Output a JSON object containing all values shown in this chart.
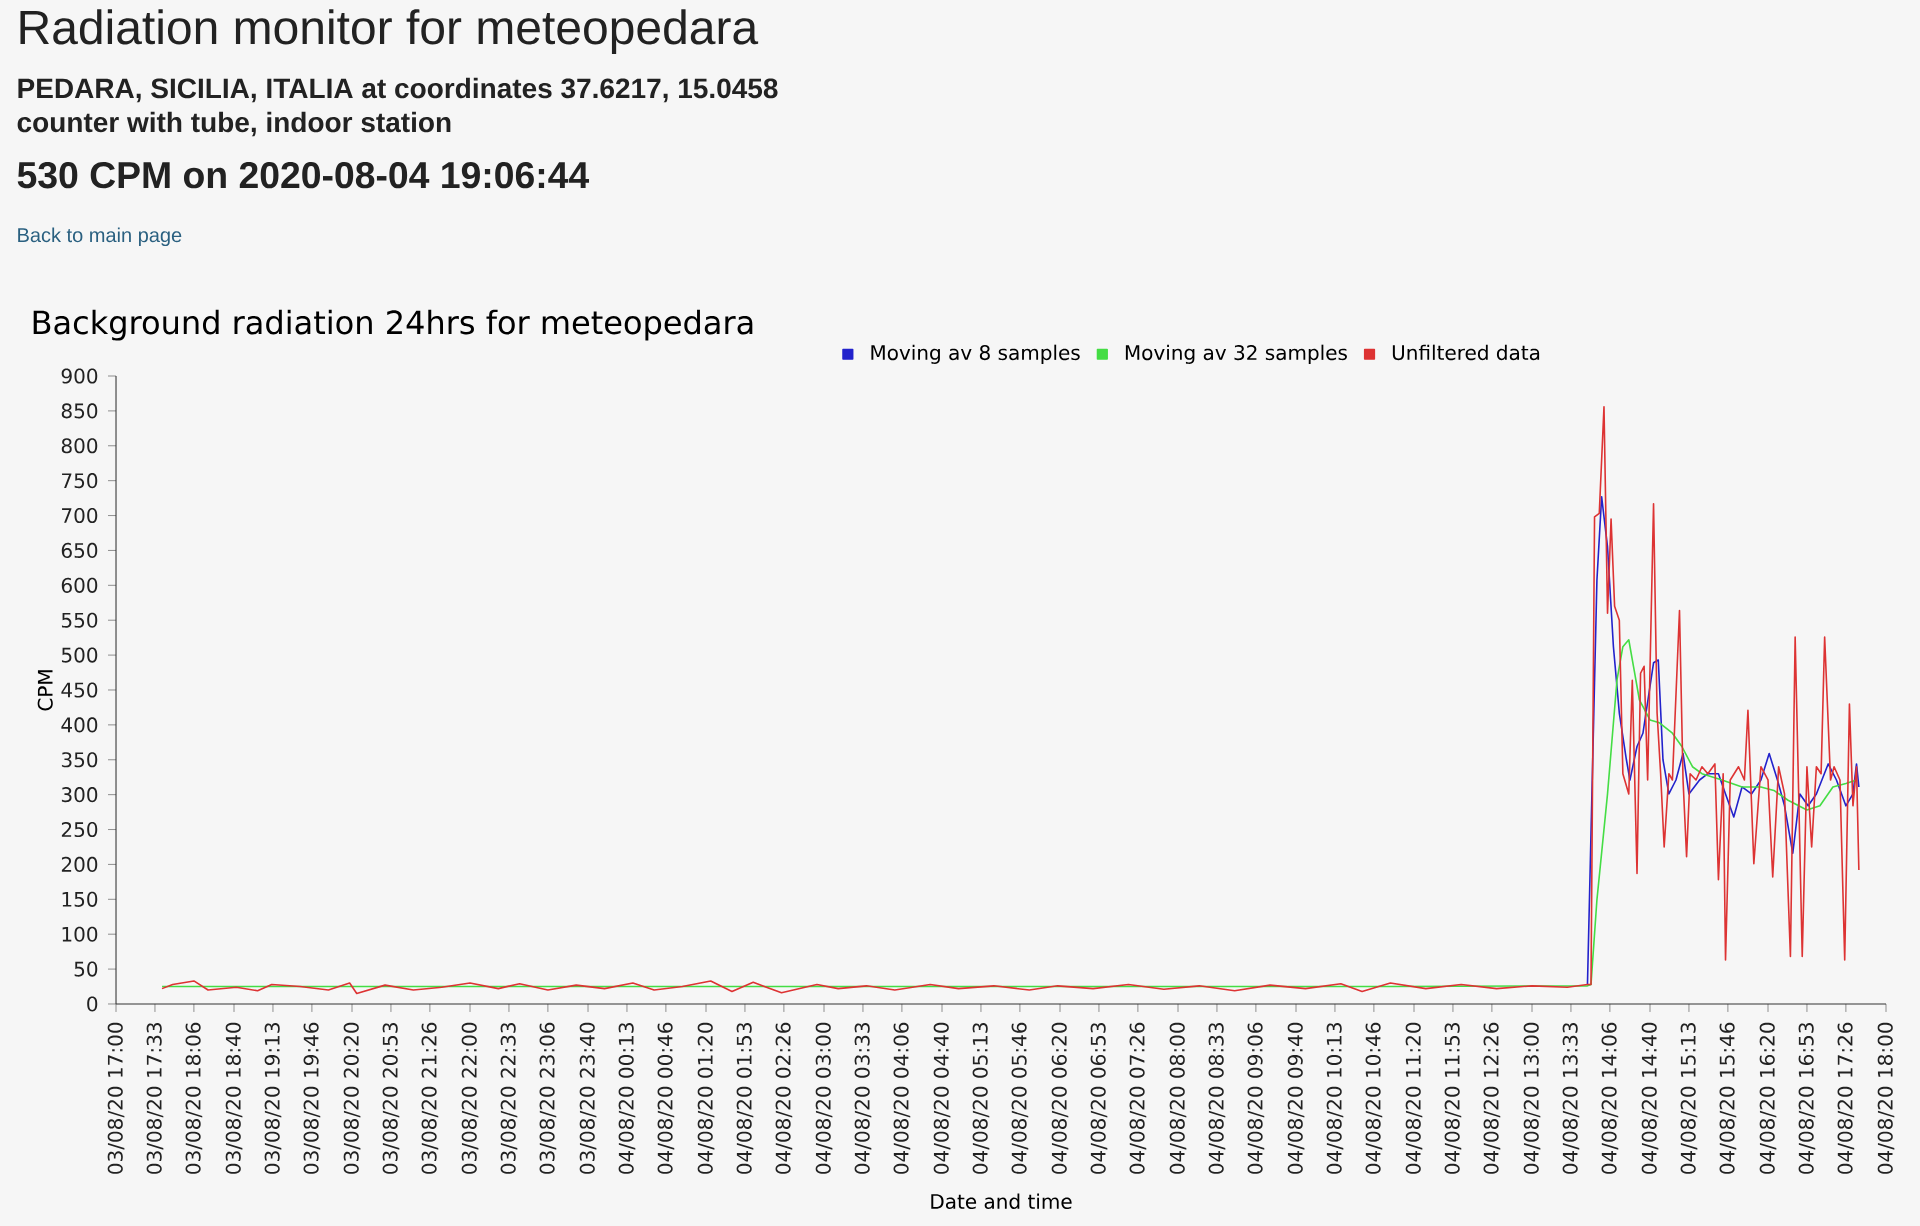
{
  "chart_data": {
    "type": "line",
    "title": "Background radiation 24hrs for meteopedara",
    "annotations": [
      "Radiation monitor for meteopedara",
      "PEDARA, SICILIA, ITALIA at coordinates 37.6217, 15.0458",
      "counter with tube, indoor station",
      "530 CPM on 2020-08-04 19:06:44",
      "Back to main page"
    ],
    "xlabel": "Date and time",
    "ylabel": "CPM",
    "xlim": [
      "2020-08-03T17:00",
      "2020-08-04T18:00"
    ],
    "ylim": [
      0,
      900
    ],
    "xticks": [
      {
        "value": "2020-08-03T17:00",
        "label": "03/08/20 17:00"
      },
      {
        "value": "2020-08-03T17:33",
        "label": "03/08/20 17:33"
      },
      {
        "value": "2020-08-03T18:06",
        "label": "03/08/20 18:06"
      },
      {
        "value": "2020-08-03T18:40",
        "label": "03/08/20 18:40"
      },
      {
        "value": "2020-08-03T19:13",
        "label": "03/08/20 19:13"
      },
      {
        "value": "2020-08-03T19:46",
        "label": "03/08/20 19:46"
      },
      {
        "value": "2020-08-03T20:20",
        "label": "03/08/20 20:20"
      },
      {
        "value": "2020-08-03T20:53",
        "label": "03/08/20 20:53"
      },
      {
        "value": "2020-08-03T21:26",
        "label": "03/08/20 21:26"
      },
      {
        "value": "2020-08-03T22:00",
        "label": "03/08/20 22:00"
      },
      {
        "value": "2020-08-03T22:33",
        "label": "03/08/20 22:33"
      },
      {
        "value": "2020-08-03T23:06",
        "label": "03/08/20 23:06"
      },
      {
        "value": "2020-08-03T23:40",
        "label": "03/08/20 23:40"
      },
      {
        "value": "2020-08-04T00:13",
        "label": "04/08/20 00:13"
      },
      {
        "value": "2020-08-04T00:46",
        "label": "04/08/20 00:46"
      },
      {
        "value": "2020-08-04T01:20",
        "label": "04/08/20 01:20"
      },
      {
        "value": "2020-08-04T01:53",
        "label": "04/08/20 01:53"
      },
      {
        "value": "2020-08-04T02:26",
        "label": "04/08/20 02:26"
      },
      {
        "value": "2020-08-04T03:00",
        "label": "04/08/20 03:00"
      },
      {
        "value": "2020-08-04T03:33",
        "label": "04/08/20 03:33"
      },
      {
        "value": "2020-08-04T04:06",
        "label": "04/08/20 04:06"
      },
      {
        "value": "2020-08-04T04:40",
        "label": "04/08/20 04:40"
      },
      {
        "value": "2020-08-04T05:13",
        "label": "04/08/20 05:13"
      },
      {
        "value": "2020-08-04T05:46",
        "label": "04/08/20 05:46"
      },
      {
        "value": "2020-08-04T06:20",
        "label": "04/08/20 06:20"
      },
      {
        "value": "2020-08-04T06:53",
        "label": "04/08/20 06:53"
      },
      {
        "value": "2020-08-04T07:26",
        "label": "04/08/20 07:26"
      },
      {
        "value": "2020-08-04T08:00",
        "label": "04/08/20 08:00"
      },
      {
        "value": "2020-08-04T08:33",
        "label": "04/08/20 08:33"
      },
      {
        "value": "2020-08-04T09:06",
        "label": "04/08/20 09:06"
      },
      {
        "value": "2020-08-04T09:40",
        "label": "04/08/20 09:40"
      },
      {
        "value": "2020-08-04T10:13",
        "label": "04/08/20 10:13"
      },
      {
        "value": "2020-08-04T10:46",
        "label": "04/08/20 10:46"
      },
      {
        "value": "2020-08-04T11:20",
        "label": "04/08/20 11:20"
      },
      {
        "value": "2020-08-04T11:53",
        "label": "04/08/20 11:53"
      },
      {
        "value": "2020-08-04T12:26",
        "label": "04/08/20 12:26"
      },
      {
        "value": "2020-08-04T13:00",
        "label": "04/08/20 13:00"
      },
      {
        "value": "2020-08-04T13:33",
        "label": "04/08/20 13:33"
      },
      {
        "value": "2020-08-04T14:06",
        "label": "04/08/20 14:06"
      },
      {
        "value": "2020-08-04T14:40",
        "label": "04/08/20 14:40"
      },
      {
        "value": "2020-08-04T15:13",
        "label": "04/08/20 15:13"
      },
      {
        "value": "2020-08-04T15:46",
        "label": "04/08/20 15:46"
      },
      {
        "value": "2020-08-04T16:20",
        "label": "04/08/20 16:20"
      },
      {
        "value": "2020-08-04T16:53",
        "label": "04/08/20 16:53"
      },
      {
        "value": "2020-08-04T17:26",
        "label": "04/08/20 17:26"
      },
      {
        "value": "2020-08-04T18:00",
        "label": "04/08/20 18:00"
      }
    ],
    "yticks": [
      0,
      50,
      100,
      150,
      200,
      250,
      300,
      350,
      400,
      450,
      500,
      550,
      600,
      650,
      700,
      750,
      800,
      850,
      900
    ],
    "legend": "top",
    "series": [
      {
        "name": "Moving av 8 samples",
        "color": "#2222cc",
        "x": [
          "2020-08-04T13:47",
          "2020-08-04T13:55",
          "2020-08-04T13:59",
          "2020-08-04T14:04",
          "2020-08-04T14:09",
          "2020-08-04T14:14",
          "2020-08-04T14:20",
          "2020-08-04T14:23",
          "2020-08-04T14:29",
          "2020-08-04T14:34",
          "2020-08-04T14:43",
          "2020-08-04T14:47",
          "2020-08-04T14:51",
          "2020-08-04T14:56",
          "2020-08-04T15:02",
          "2020-08-04T15:08",
          "2020-08-04T15:13",
          "2020-08-04T15:22",
          "2020-08-04T15:29",
          "2020-08-04T15:38",
          "2020-08-04T15:44",
          "2020-08-04T15:51",
          "2020-08-04T15:58",
          "2020-08-04T16:06",
          "2020-08-04T16:14",
          "2020-08-04T16:21",
          "2020-08-04T16:28",
          "2020-08-04T16:34",
          "2020-08-04T16:41",
          "2020-08-04T16:47",
          "2020-08-04T16:54",
          "2020-08-04T17:01",
          "2020-08-04T17:11",
          "2020-08-04T17:18",
          "2020-08-04T17:26",
          "2020-08-04T17:32",
          "2020-08-04T17:35",
          "2020-08-04T17:37"
        ],
        "values": [
          28,
          607,
          727,
          655,
          512,
          417,
          350,
          321,
          369,
          388,
          489,
          493,
          350,
          301,
          321,
          359,
          301,
          321,
          330,
          330,
          301,
          268,
          311,
          301,
          321,
          359,
          321,
          284,
          216,
          301,
          284,
          301,
          344,
          321,
          284,
          301,
          344,
          311
        ]
      },
      {
        "name": "Moving av 32 samples",
        "color": "#44dd44",
        "x": [
          "2020-08-03T17:39",
          "2020-08-03T19:00",
          "2020-08-03T21:00",
          "2020-08-03T23:00",
          "2020-08-04T01:00",
          "2020-08-04T03:00",
          "2020-08-04T05:00",
          "2020-08-04T07:00",
          "2020-08-04T09:00",
          "2020-08-04T11:00",
          "2020-08-04T13:47",
          "2020-08-04T13:50",
          "2020-08-04T13:55",
          "2020-08-04T14:04",
          "2020-08-04T14:12",
          "2020-08-04T14:17",
          "2020-08-04T14:22",
          "2020-08-04T14:26",
          "2020-08-04T14:31",
          "2020-08-04T14:40",
          "2020-08-04T14:48",
          "2020-08-04T14:59",
          "2020-08-04T15:07",
          "2020-08-04T15:16",
          "2020-08-04T15:24",
          "2020-08-04T15:41",
          "2020-08-04T15:58",
          "2020-08-04T16:14",
          "2020-08-04T16:25",
          "2020-08-04T16:37",
          "2020-08-04T16:53",
          "2020-08-04T17:04",
          "2020-08-04T17:15",
          "2020-08-04T17:26",
          "2020-08-04T17:35"
        ],
        "values": [
          25,
          25,
          25,
          25,
          25,
          25,
          25,
          25,
          25,
          25,
          26,
          28,
          149,
          301,
          464,
          512,
          522,
          484,
          436,
          407,
          403,
          388,
          369,
          340,
          330,
          321,
          311,
          311,
          306,
          292,
          278,
          284,
          311,
          316,
          321
        ]
      },
      {
        "name": "Unfiltered data",
        "color": "#dd3333",
        "x": [
          "2020-08-03T17:39",
          "2020-08-03T17:48",
          "2020-08-03T18:06",
          "2020-08-03T18:18",
          "2020-08-03T18:42",
          "2020-08-03T19:00",
          "2020-08-03T19:12",
          "2020-08-03T19:36",
          "2020-08-03T20:00",
          "2020-08-03T20:18",
          "2020-08-03T20:24",
          "2020-08-03T20:48",
          "2020-08-03T21:12",
          "2020-08-03T21:36",
          "2020-08-03T22:00",
          "2020-08-03T22:24",
          "2020-08-03T22:42",
          "2020-08-03T23:06",
          "2020-08-03T23:30",
          "2020-08-03T23:54",
          "2020-08-04T00:18",
          "2020-08-04T00:36",
          "2020-08-04T01:00",
          "2020-08-04T01:24",
          "2020-08-04T01:42",
          "2020-08-04T02:00",
          "2020-08-04T02:24",
          "2020-08-04T02:54",
          "2020-08-04T03:12",
          "2020-08-04T03:36",
          "2020-08-04T04:00",
          "2020-08-04T04:30",
          "2020-08-04T04:54",
          "2020-08-04T05:24",
          "2020-08-04T05:54",
          "2020-08-04T06:18",
          "2020-08-04T06:48",
          "2020-08-04T07:18",
          "2020-08-04T07:48",
          "2020-08-04T08:18",
          "2020-08-04T08:48",
          "2020-08-04T09:18",
          "2020-08-04T09:48",
          "2020-08-04T10:18",
          "2020-08-04T10:36",
          "2020-08-04T11:00",
          "2020-08-04T11:30",
          "2020-08-04T12:00",
          "2020-08-04T12:30",
          "2020-08-04T13:00",
          "2020-08-04T13:30",
          "2020-08-04T13:47",
          "2020-08-04T13:50",
          "2020-08-04T13:53",
          "2020-08-04T13:57",
          "2020-08-04T14:01",
          "2020-08-04T14:04",
          "2020-08-04T14:07",
          "2020-08-04T14:10",
          "2020-08-04T14:14",
          "2020-08-04T14:17",
          "2020-08-04T14:22",
          "2020-08-04T14:25",
          "2020-08-04T14:29",
          "2020-08-04T14:32",
          "2020-08-04T14:35",
          "2020-08-04T14:38",
          "2020-08-04T14:43",
          "2020-08-04T14:46",
          "2020-08-04T14:49",
          "2020-08-04T14:52",
          "2020-08-04T14:56",
          "2020-08-04T14:59",
          "2020-08-04T15:05",
          "2020-08-04T15:08",
          "2020-08-04T15:11",
          "2020-08-04T15:14",
          "2020-08-04T15:19",
          "2020-08-04T15:24",
          "2020-08-04T15:29",
          "2020-08-04T15:35",
          "2020-08-04T15:38",
          "2020-08-04T15:42",
          "2020-08-04T15:44",
          "2020-08-04T15:48",
          "2020-08-04T15:55",
          "2020-08-04T16:00",
          "2020-08-04T16:03",
          "2020-08-04T16:08",
          "2020-08-04T16:14",
          "2020-08-04T16:20",
          "2020-08-04T16:24",
          "2020-08-04T16:29",
          "2020-08-04T16:34",
          "2020-08-04T16:39",
          "2020-08-04T16:43",
          "2020-08-04T16:46",
          "2020-08-04T16:49",
          "2020-08-04T16:53",
          "2020-08-04T16:57",
          "2020-08-04T17:01",
          "2020-08-04T17:05",
          "2020-08-04T17:08",
          "2020-08-04T17:13",
          "2020-08-04T17:16",
          "2020-08-04T17:21",
          "2020-08-04T17:25",
          "2020-08-04T17:29",
          "2020-08-04T17:32",
          "2020-08-04T17:35",
          "2020-08-04T17:37"
        ],
        "values": [
          22,
          28,
          33,
          20,
          24,
          19,
          28,
          25,
          20,
          30,
          15,
          27,
          20,
          24,
          30,
          22,
          29,
          20,
          27,
          22,
          30,
          20,
          25,
          33,
          18,
          31,
          16,
          28,
          22,
          26,
          20,
          28,
          22,
          26,
          20,
          26,
          22,
          28,
          21,
          26,
          19,
          27,
          22,
          29,
          18,
          30,
          22,
          28,
          22,
          26,
          24,
          28,
          28,
          698,
          703,
          856,
          560,
          695,
          570,
          550,
          330,
          301,
          464,
          187,
          474,
          484,
          321,
          717,
          417,
          330,
          225,
          330,
          321,
          564,
          321,
          211,
          330,
          321,
          340,
          330,
          344,
          178,
          330,
          63,
          321,
          340,
          321,
          421,
          201,
          340,
          321,
          182,
          340,
          301,
          68,
          526,
          301,
          68,
          340,
          225,
          340,
          330,
          526,
          321,
          340,
          321,
          63,
          430,
          284,
          340,
          192
        ]
      }
    ]
  }
}
